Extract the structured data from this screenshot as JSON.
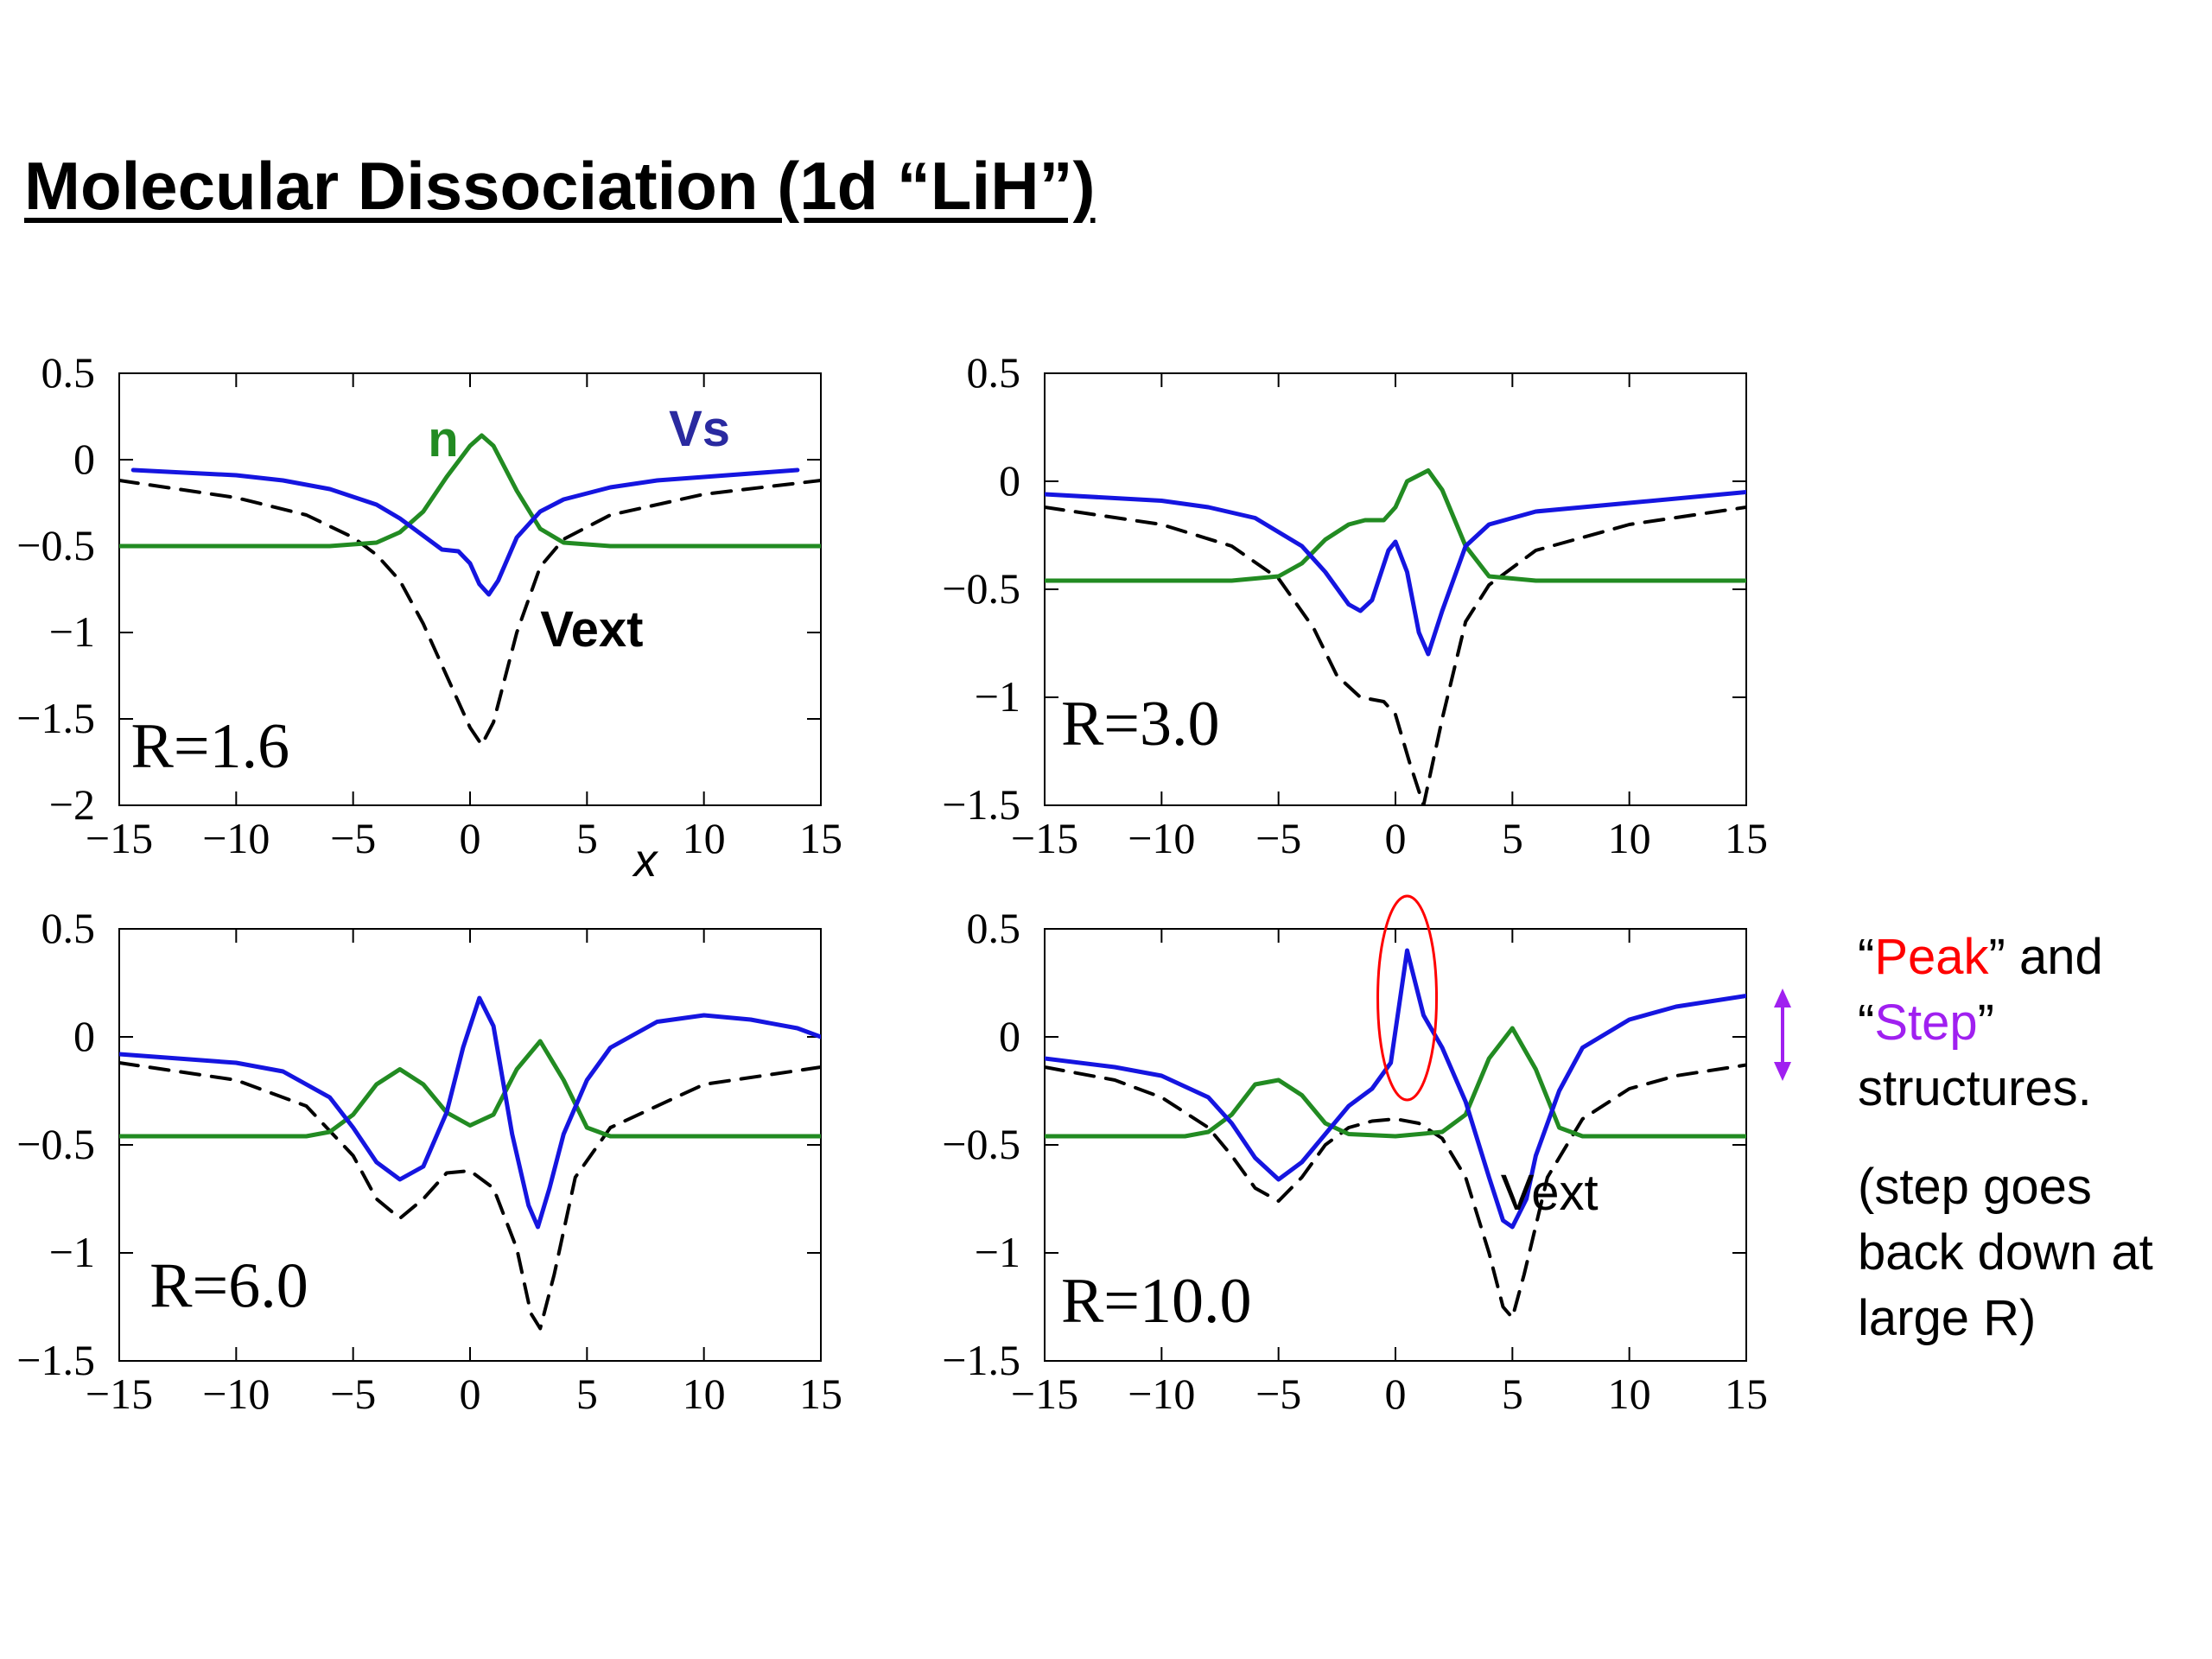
{
  "title": "Molecular Dissociation (1d “LiH”)",
  "annotations": {
    "peak_word": "Peak",
    "step_word": "Step",
    "open_quote": "“",
    "close_quote": "”",
    "and_text": " and",
    "structures_text": "structures.",
    "note": "(step goes back down at large R)"
  },
  "colors": {
    "n": "#228b22",
    "vs": "#1515e0",
    "vext": "#000000",
    "peak_marker": "#ff0000",
    "step_marker": "#a020f0",
    "label_vs": "#2a2aa0"
  },
  "chart_data": [
    {
      "type": "line",
      "panel_label": "R=1.6",
      "xlabel": "x",
      "xlim": [
        -15,
        15
      ],
      "ylim": [
        -2,
        0.5
      ],
      "xticks": [
        -15,
        -10,
        -5,
        0,
        5,
        10,
        15
      ],
      "yticks": [
        -2,
        -1.5,
        -1,
        -0.5,
        0,
        0.5
      ],
      "series_labels": [
        {
          "series": "n",
          "text": "n"
        },
        {
          "series": "vs",
          "text": "Vs"
        },
        {
          "series": "vext",
          "text": "Vext"
        }
      ],
      "series": [
        {
          "key": "vs",
          "style": "solid",
          "x": [
            -14.4,
            -10,
            -8,
            -6,
            -4,
            -3,
            -2,
            -1.2,
            -0.5,
            0,
            0.4,
            0.8,
            1.2,
            2,
            3,
            4,
            6,
            8,
            10,
            14
          ],
          "y": [
            -0.06,
            -0.09,
            -0.12,
            -0.17,
            -0.26,
            -0.34,
            -0.44,
            -0.52,
            -0.53,
            -0.6,
            -0.72,
            -0.78,
            -0.7,
            -0.45,
            -0.3,
            -0.23,
            -0.16,
            -0.12,
            -0.1,
            -0.06
          ]
        },
        {
          "key": "n",
          "style": "solid",
          "x": [
            -15,
            -6,
            -4,
            -3,
            -2,
            -1,
            0,
            0.5,
            1,
            2,
            3,
            4,
            6,
            15
          ],
          "y": [
            -0.5,
            -0.5,
            -0.48,
            -0.42,
            -0.3,
            -0.1,
            0.08,
            0.14,
            0.08,
            -0.18,
            -0.4,
            -0.48,
            -0.5,
            -0.5
          ]
        },
        {
          "key": "vext",
          "style": "dashed",
          "x": [
            -15,
            -10,
            -7,
            -5,
            -4,
            -3,
            -2,
            -1,
            0,
            0.5,
            1,
            2,
            3,
            4,
            6,
            10,
            15
          ],
          "y": [
            -0.12,
            -0.22,
            -0.32,
            -0.45,
            -0.55,
            -0.7,
            -0.95,
            -1.25,
            -1.55,
            -1.65,
            -1.52,
            -1.0,
            -0.62,
            -0.46,
            -0.32,
            -0.2,
            -0.12
          ]
        }
      ]
    },
    {
      "type": "line",
      "panel_label": "R=3.0",
      "xlabel": "",
      "xlim": [
        -15,
        15
      ],
      "ylim": [
        -1.5,
        0.5
      ],
      "xticks": [
        -15,
        -10,
        -5,
        0,
        5,
        10,
        15
      ],
      "yticks": [
        -1.5,
        -1,
        -0.5,
        0,
        0.5
      ],
      "series_labels": [],
      "series": [
        {
          "key": "vs",
          "style": "solid",
          "x": [
            -15,
            -10,
            -8,
            -6,
            -4,
            -3,
            -2,
            -1.5,
            -1,
            -0.3,
            0,
            0.5,
            1,
            1.4,
            2,
            3,
            4,
            6,
            10,
            15
          ],
          "y": [
            -0.06,
            -0.09,
            -0.12,
            -0.17,
            -0.3,
            -0.42,
            -0.57,
            -0.6,
            -0.55,
            -0.32,
            -0.28,
            -0.42,
            -0.7,
            -0.8,
            -0.6,
            -0.3,
            -0.2,
            -0.14,
            -0.1,
            -0.05
          ]
        },
        {
          "key": "n",
          "style": "solid",
          "x": [
            -15,
            -7,
            -5,
            -4,
            -3,
            -2,
            -1.3,
            -0.5,
            0,
            0.5,
            1.4,
            2,
            3,
            4,
            6,
            15
          ],
          "y": [
            -0.46,
            -0.46,
            -0.44,
            -0.38,
            -0.27,
            -0.2,
            -0.18,
            -0.18,
            -0.12,
            0.0,
            0.05,
            -0.04,
            -0.3,
            -0.44,
            -0.46,
            -0.46
          ]
        },
        {
          "key": "vext",
          "style": "dashed",
          "x": [
            -15,
            -10,
            -7,
            -5,
            -3.5,
            -2.5,
            -1.5,
            -0.5,
            0,
            0.6,
            1.2,
            2,
            3,
            4,
            6,
            10,
            15
          ],
          "y": [
            -0.12,
            -0.2,
            -0.3,
            -0.45,
            -0.68,
            -0.9,
            -1.0,
            -1.02,
            -1.08,
            -1.3,
            -1.5,
            -1.1,
            -0.65,
            -0.48,
            -0.32,
            -0.2,
            -0.12
          ]
        }
      ]
    },
    {
      "type": "line",
      "panel_label": "R=6.0",
      "xlabel": "",
      "xlim": [
        -15,
        15
      ],
      "ylim": [
        -1.5,
        0.5
      ],
      "xticks": [
        -15,
        -10,
        -5,
        0,
        5,
        10,
        15
      ],
      "yticks": [
        -1.5,
        -1,
        -0.5,
        0,
        0.5
      ],
      "series_labels": [],
      "series": [
        {
          "key": "vs",
          "style": "solid",
          "x": [
            -15,
            -10,
            -8,
            -6,
            -5,
            -4,
            -3,
            -2,
            -1,
            -0.3,
            0.4,
            1,
            1.8,
            2.5,
            2.9,
            3.4,
            4,
            5,
            6,
            8,
            10,
            12,
            14,
            15
          ],
          "y": [
            -0.08,
            -0.12,
            -0.16,
            -0.28,
            -0.42,
            -0.58,
            -0.66,
            -0.6,
            -0.35,
            -0.05,
            0.18,
            0.05,
            -0.45,
            -0.78,
            -0.88,
            -0.7,
            -0.45,
            -0.2,
            -0.05,
            0.07,
            0.1,
            0.08,
            0.04,
            0.0
          ]
        },
        {
          "key": "n",
          "style": "solid",
          "x": [
            -15,
            -7,
            -6,
            -5,
            -4,
            -3,
            -2,
            -1,
            0,
            1,
            2,
            3,
            4,
            5,
            6,
            7,
            15
          ],
          "y": [
            -0.46,
            -0.46,
            -0.44,
            -0.36,
            -0.22,
            -0.15,
            -0.22,
            -0.35,
            -0.41,
            -0.36,
            -0.15,
            -0.02,
            -0.2,
            -0.42,
            -0.46,
            -0.46,
            -0.46
          ]
        },
        {
          "key": "vext",
          "style": "dashed",
          "x": [
            -15,
            -10,
            -7,
            -5,
            -4,
            -3,
            -2,
            -1,
            0,
            1,
            2,
            2.6,
            3,
            3.6,
            4.5,
            6,
            10,
            15
          ],
          "y": [
            -0.12,
            -0.2,
            -0.32,
            -0.55,
            -0.75,
            -0.84,
            -0.75,
            -0.63,
            -0.62,
            -0.7,
            -0.98,
            -1.28,
            -1.35,
            -1.1,
            -0.65,
            -0.42,
            -0.22,
            -0.14
          ]
        }
      ]
    },
    {
      "type": "line",
      "panel_label": "R=10.0",
      "xlabel": "",
      "xlim": [
        -15,
        15
      ],
      "ylim": [
        -1.5,
        0.5
      ],
      "xticks": [
        -15,
        -10,
        -5,
        0,
        5,
        10,
        15
      ],
      "yticks": [
        -1.5,
        -1,
        -0.5,
        0,
        0.5
      ],
      "series_labels": [
        {
          "series": "vext",
          "text": "Vext"
        }
      ],
      "series": [
        {
          "key": "vs",
          "style": "solid",
          "x": [
            -15,
            -12,
            -10,
            -8,
            -7,
            -6,
            -5,
            -4,
            -3,
            -2,
            -1,
            -0.2,
            0.5,
            1.2,
            2,
            3,
            4,
            4.6,
            5,
            5.6,
            6,
            7,
            8,
            10,
            12,
            15
          ],
          "y": [
            -0.1,
            -0.14,
            -0.18,
            -0.28,
            -0.4,
            -0.56,
            -0.66,
            -0.58,
            -0.45,
            -0.32,
            -0.24,
            -0.12,
            0.4,
            0.1,
            -0.05,
            -0.3,
            -0.65,
            -0.85,
            -0.88,
            -0.75,
            -0.55,
            -0.25,
            -0.05,
            0.08,
            0.14,
            0.19
          ]
        },
        {
          "key": "n",
          "style": "solid",
          "x": [
            -15,
            -9,
            -8,
            -7,
            -6,
            -5,
            -4,
            -3,
            -2,
            0,
            2,
            3,
            4,
            5,
            6,
            7,
            8,
            15
          ],
          "y": [
            -0.46,
            -0.46,
            -0.44,
            -0.36,
            -0.22,
            -0.2,
            -0.27,
            -0.4,
            -0.45,
            -0.46,
            -0.44,
            -0.36,
            -0.1,
            0.04,
            -0.15,
            -0.42,
            -0.46,
            -0.46
          ]
        },
        {
          "key": "vext",
          "style": "dashed",
          "x": [
            -15,
            -12,
            -10,
            -8,
            -7,
            -6,
            -5,
            -4,
            -3,
            -2,
            -1,
            0,
            1,
            2,
            3,
            4,
            4.6,
            5,
            5.5,
            6.5,
            8,
            10,
            12,
            15
          ],
          "y": [
            -0.14,
            -0.2,
            -0.28,
            -0.42,
            -0.55,
            -0.7,
            -0.76,
            -0.65,
            -0.5,
            -0.42,
            -0.39,
            -0.38,
            -0.4,
            -0.47,
            -0.65,
            -1.0,
            -1.25,
            -1.3,
            -1.1,
            -0.65,
            -0.38,
            -0.24,
            -0.18,
            -0.13
          ]
        }
      ]
    }
  ]
}
